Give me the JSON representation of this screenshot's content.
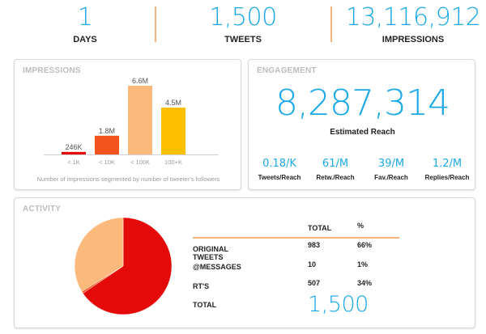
{
  "kpis": [
    {
      "value": "1",
      "label": "DAYS"
    },
    {
      "value": "1,500",
      "label": "TWEETS"
    },
    {
      "value": "13,116,912",
      "label": "IMPRESSIONS"
    }
  ],
  "colors": {
    "accent_blue": "#1ba8e6",
    "divider_orange": "#f5b57a",
    "red": "#e50a0a",
    "orange_red": "#f2521b",
    "peach": "#fbb97b",
    "yellow": "#fdc000"
  },
  "impressions": {
    "title": "IMPRESSIONS",
    "caption": "Number of impressions segmented by number of tweeter's followers"
  },
  "engagement": {
    "title": "ENGAGEMENT",
    "estimated_reach_value": "8,287,314",
    "estimated_reach_label": "Estimated Reach",
    "metrics": [
      {
        "value": "0.18/K",
        "label": "Tweets/Reach"
      },
      {
        "value": "61/M",
        "label": "Retw./Reach"
      },
      {
        "value": "39/M",
        "label": "Fav./Reach"
      },
      {
        "value": "1.2/M",
        "label": "Replies/Reach"
      }
    ]
  },
  "activity": {
    "title": "ACTIVITY",
    "columns": {
      "total": "TOTAL",
      "percent": "%"
    },
    "rows": [
      {
        "label": "ORIGINAL TWEETS",
        "total": "983",
        "percent": "66%"
      },
      {
        "label": "@MESSAGES",
        "total": "10",
        "percent": "1%"
      },
      {
        "label": "RT'S",
        "total": "507",
        "percent": "34%"
      }
    ],
    "total_label": "TOTAL",
    "total_value": "1,500"
  },
  "chart_data": [
    {
      "type": "bar",
      "title": "IMPRESSIONS",
      "categories": [
        "< 1K",
        "< 10K",
        "< 100K",
        "100+K"
      ],
      "values": [
        246000,
        1800000,
        6600000,
        4500000
      ],
      "data_labels": [
        "246K",
        "1.8M",
        "6.6M",
        "4.5M"
      ],
      "colors": [
        "#e50a0a",
        "#f2521b",
        "#fbb97b",
        "#fdc000"
      ],
      "ylim": [
        0,
        6600000
      ],
      "grid": false
    },
    {
      "type": "pie",
      "title": "ACTIVITY",
      "labels": [
        "ORIGINAL TWEETS",
        "@MESSAGES",
        "RT'S"
      ],
      "values": [
        983,
        10,
        507
      ],
      "colors": [
        "#e50a0a",
        "#f2521b",
        "#fbb97b"
      ]
    }
  ]
}
